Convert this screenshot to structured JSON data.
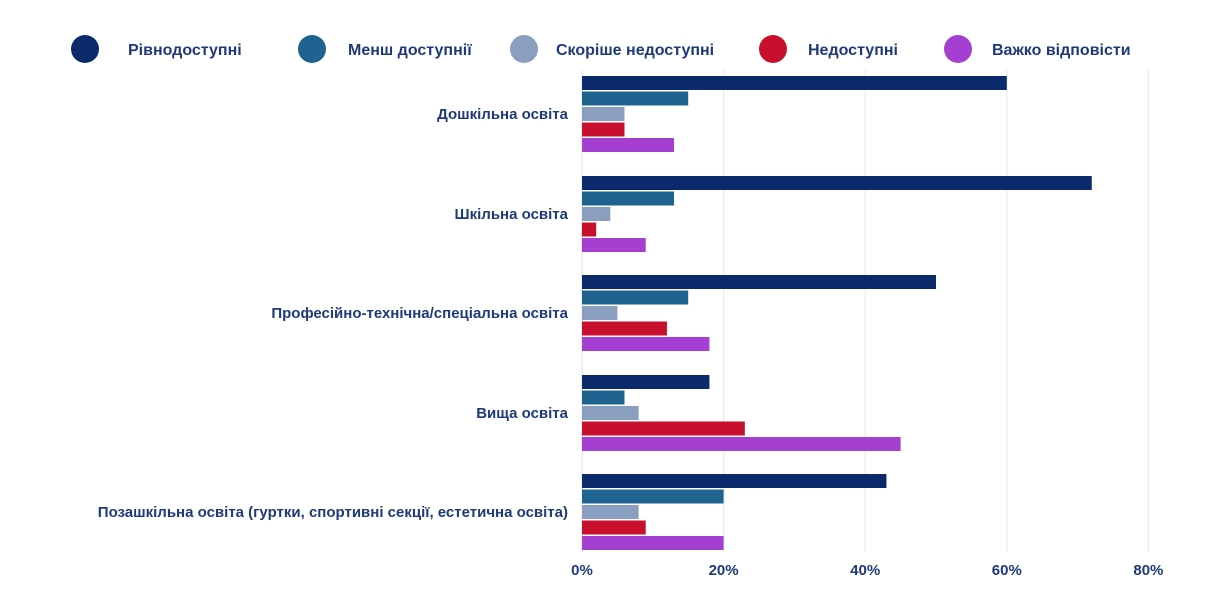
{
  "chart_data": {
    "type": "bar",
    "orientation": "horizontal",
    "categories": [
      "Дошкільна освіта",
      "Шкільна освіта",
      "Професійно-технічна/спеціальна освіта",
      "Вища освіта",
      "Позашкільна освіта (гуртки, спортивні секції, естетична освіта)"
    ],
    "series": [
      {
        "name": "Рівнодоступні",
        "color": "#0b2a6b",
        "values": [
          60,
          72,
          50,
          18,
          43
        ]
      },
      {
        "name": "Менш доступнії",
        "color": "#1f6391",
        "values": [
          15,
          13,
          15,
          6,
          20
        ]
      },
      {
        "name": "Скоріше недоступні",
        "color": "#8a9ebf",
        "values": [
          6,
          4,
          5,
          8,
          8
        ]
      },
      {
        "name": "Недоступні",
        "color": "#c8102e",
        "values": [
          6,
          2,
          12,
          23,
          9
        ]
      },
      {
        "name": "Важко відповісти",
        "color": "#a43fd1",
        "values": [
          13,
          9,
          18,
          45,
          20
        ]
      }
    ],
    "x_ticks": [
      "0%",
      "20%",
      "40%",
      "60%",
      "80%"
    ],
    "xlim": [
      0,
      80
    ],
    "unit": "%",
    "grid": true,
    "legend_position": "top",
    "title": "",
    "xlabel": "",
    "ylabel": ""
  },
  "colors": {
    "text": "#1e3a7a",
    "grid": "#e6e6e6"
  }
}
